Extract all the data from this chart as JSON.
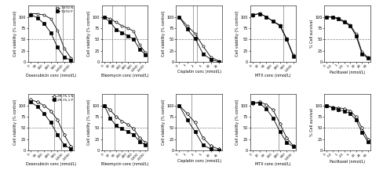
{
  "top_legend": [
    "T-47D N",
    "T-47D P"
  ],
  "bottom_legend": [
    "ZR-75-1 N",
    "ZR-75-1 P"
  ],
  "top_markers": [
    "o",
    "s"
  ],
  "bottom_markers": [
    "D",
    "s"
  ],
  "xlabels": [
    "Doxorubicin conc (nmol/L)",
    "Bleomycin conc (nmol/L)",
    "Cisplatin conc (nmol/L)",
    "MTX conc (nmol/L)",
    "Paclitaxel (nmol/L)"
  ],
  "ylabels_row1": [
    "Cell viability (% control)",
    "Cell viability (% control)",
    "Cell viability (% control)",
    "Cell viability (% control)",
    "% Cell survival"
  ],
  "ylabels_row2": [
    "Cell viability (% control)",
    "Cell viability (% control)",
    "Cell viability (% control)",
    "Cell viability (% control)",
    "% Cell survival"
  ],
  "xtick_labels": [
    [
      "0",
      "50",
      "100",
      "200",
      "500",
      "1,000",
      "2,000"
    ],
    [
      "0",
      "10",
      "50",
      "100",
      "200",
      "500",
      "1,000",
      "2,000"
    ],
    [
      "0",
      "1",
      "2",
      "5",
      "10",
      "16"
    ],
    [
      "0",
      "10",
      "50",
      "100",
      "200",
      "500",
      "1,000"
    ],
    [
      "0",
      "0.2",
      "1",
      "2.5",
      "5",
      "10",
      "20",
      "50"
    ]
  ],
  "top_N": [
    [
      0,
      1,
      2,
      3,
      4,
      5,
      6
    ],
    [
      0,
      1,
      2,
      3,
      4,
      5,
      6,
      7
    ],
    [
      0,
      1,
      2,
      3,
      4,
      5
    ],
    [
      0,
      1,
      2,
      3,
      4,
      5,
      6
    ],
    [
      0,
      1,
      2,
      3,
      4,
      5,
      6,
      7
    ]
  ],
  "top_N_y": [
    [
      107,
      107,
      104,
      96,
      70,
      30,
      8
    ],
    [
      100,
      96,
      88,
      80,
      75,
      68,
      38,
      20
    ],
    [
      100,
      80,
      63,
      35,
      10,
      2
    ],
    [
      103,
      108,
      100,
      90,
      82,
      52,
      15
    ],
    [
      100,
      100,
      97,
      90,
      82,
      62,
      22,
      10
    ]
  ],
  "top_P_y": [
    [
      105,
      98,
      85,
      65,
      32,
      10,
      3
    ],
    [
      99,
      88,
      72,
      65,
      58,
      50,
      28,
      16
    ],
    [
      100,
      73,
      52,
      18,
      5,
      0
    ],
    [
      105,
      107,
      100,
      90,
      80,
      50,
      12
    ],
    [
      100,
      99,
      95,
      88,
      80,
      58,
      18,
      8
    ]
  ],
  "bottom_N_y": [
    [
      113,
      108,
      100,
      88,
      68,
      35,
      8
    ],
    [
      100,
      90,
      75,
      65,
      58,
      48,
      28,
      18
    ],
    [
      100,
      82,
      62,
      28,
      10,
      3
    ],
    [
      104,
      108,
      102,
      90,
      60,
      28,
      10
    ],
    [
      100,
      96,
      95,
      93,
      88,
      75,
      50,
      25
    ]
  ],
  "bottom_P_y": [
    [
      108,
      98,
      82,
      62,
      35,
      12,
      3
    ],
    [
      100,
      72,
      55,
      48,
      42,
      35,
      20,
      12
    ],
    [
      100,
      68,
      42,
      12,
      3,
      0
    ],
    [
      107,
      105,
      92,
      72,
      42,
      18,
      8
    ],
    [
      100,
      95,
      90,
      88,
      82,
      68,
      40,
      20
    ]
  ],
  "top_vline_idx": [
    3.7,
    1.3,
    1.7,
    4.5,
    null
  ],
  "bottom_vline_idx": [
    3.5,
    1.8,
    1.5,
    3.8,
    null
  ],
  "top_vline2_idx": [
    4.8,
    3.5,
    2.2,
    null,
    null
  ],
  "bottom_vline2_idx": [
    4.5,
    null,
    null,
    null,
    null
  ]
}
